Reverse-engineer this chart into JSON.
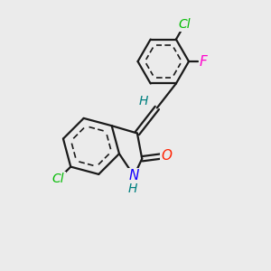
{
  "background_color": "#ebebeb",
  "bond_color": "#1a1a1a",
  "bond_width": 1.6,
  "atoms": {
    "N": {
      "color": "#1400ff"
    },
    "H_N": {
      "color": "#008080"
    },
    "O": {
      "color": "#ff2000"
    },
    "Cl_indole": {
      "color": "#00bb00"
    },
    "Cl_phenyl": {
      "color": "#00bb00"
    },
    "F": {
      "color": "#ff00cc"
    },
    "H_vinyl": {
      "color": "#008080"
    }
  },
  "figsize": [
    3.0,
    3.0
  ],
  "dpi": 100
}
